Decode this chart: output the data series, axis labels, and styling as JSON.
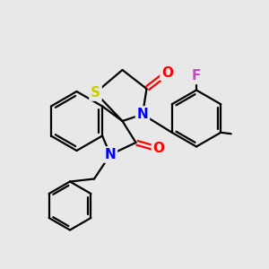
{
  "bg_color": "#e8e8e8",
  "atom_colors": {
    "S": "#cccc00",
    "N": "#0000ff",
    "O": "#ff0000",
    "F": "#cc44cc",
    "C": "#000000"
  },
  "bond_color": "#000000",
  "bond_width": 1.6,
  "font_size": 10
}
